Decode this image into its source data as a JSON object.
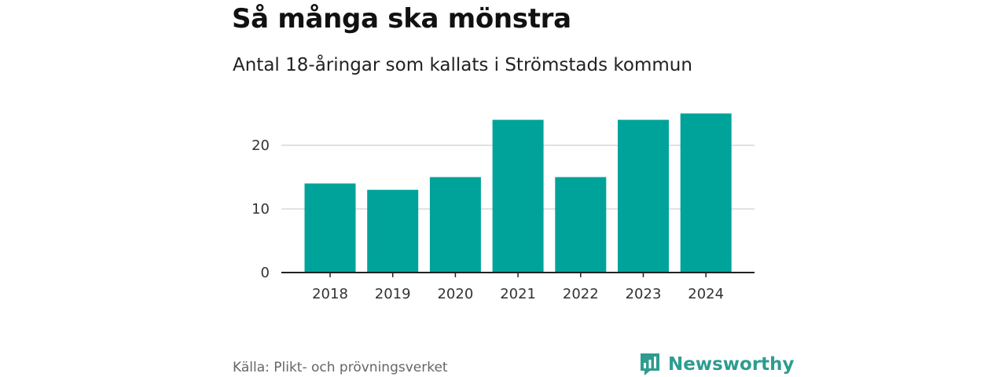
{
  "colors": {
    "bar": "#00a39a",
    "brand": "#2e9c90",
    "grid": "#d9d9d9",
    "axis": "#222222"
  },
  "chart_data": {
    "type": "bar",
    "title": "Så många ska mönstra",
    "subtitle": "Antal 18-åringar som kallats i Strömstads kommun",
    "categories": [
      "2018",
      "2019",
      "2020",
      "2021",
      "2022",
      "2023",
      "2024"
    ],
    "values": [
      14,
      13,
      15,
      24,
      15,
      24,
      25
    ],
    "yticks": [
      0,
      10,
      20
    ],
    "ylim": [
      0,
      27.4
    ],
    "xlabel": "",
    "ylabel": "",
    "grid": true,
    "source": "Källa: Plikt- och prövningsverket"
  },
  "brand": {
    "name": "Newsworthy",
    "icon": "newsworthy-logo-icon"
  }
}
